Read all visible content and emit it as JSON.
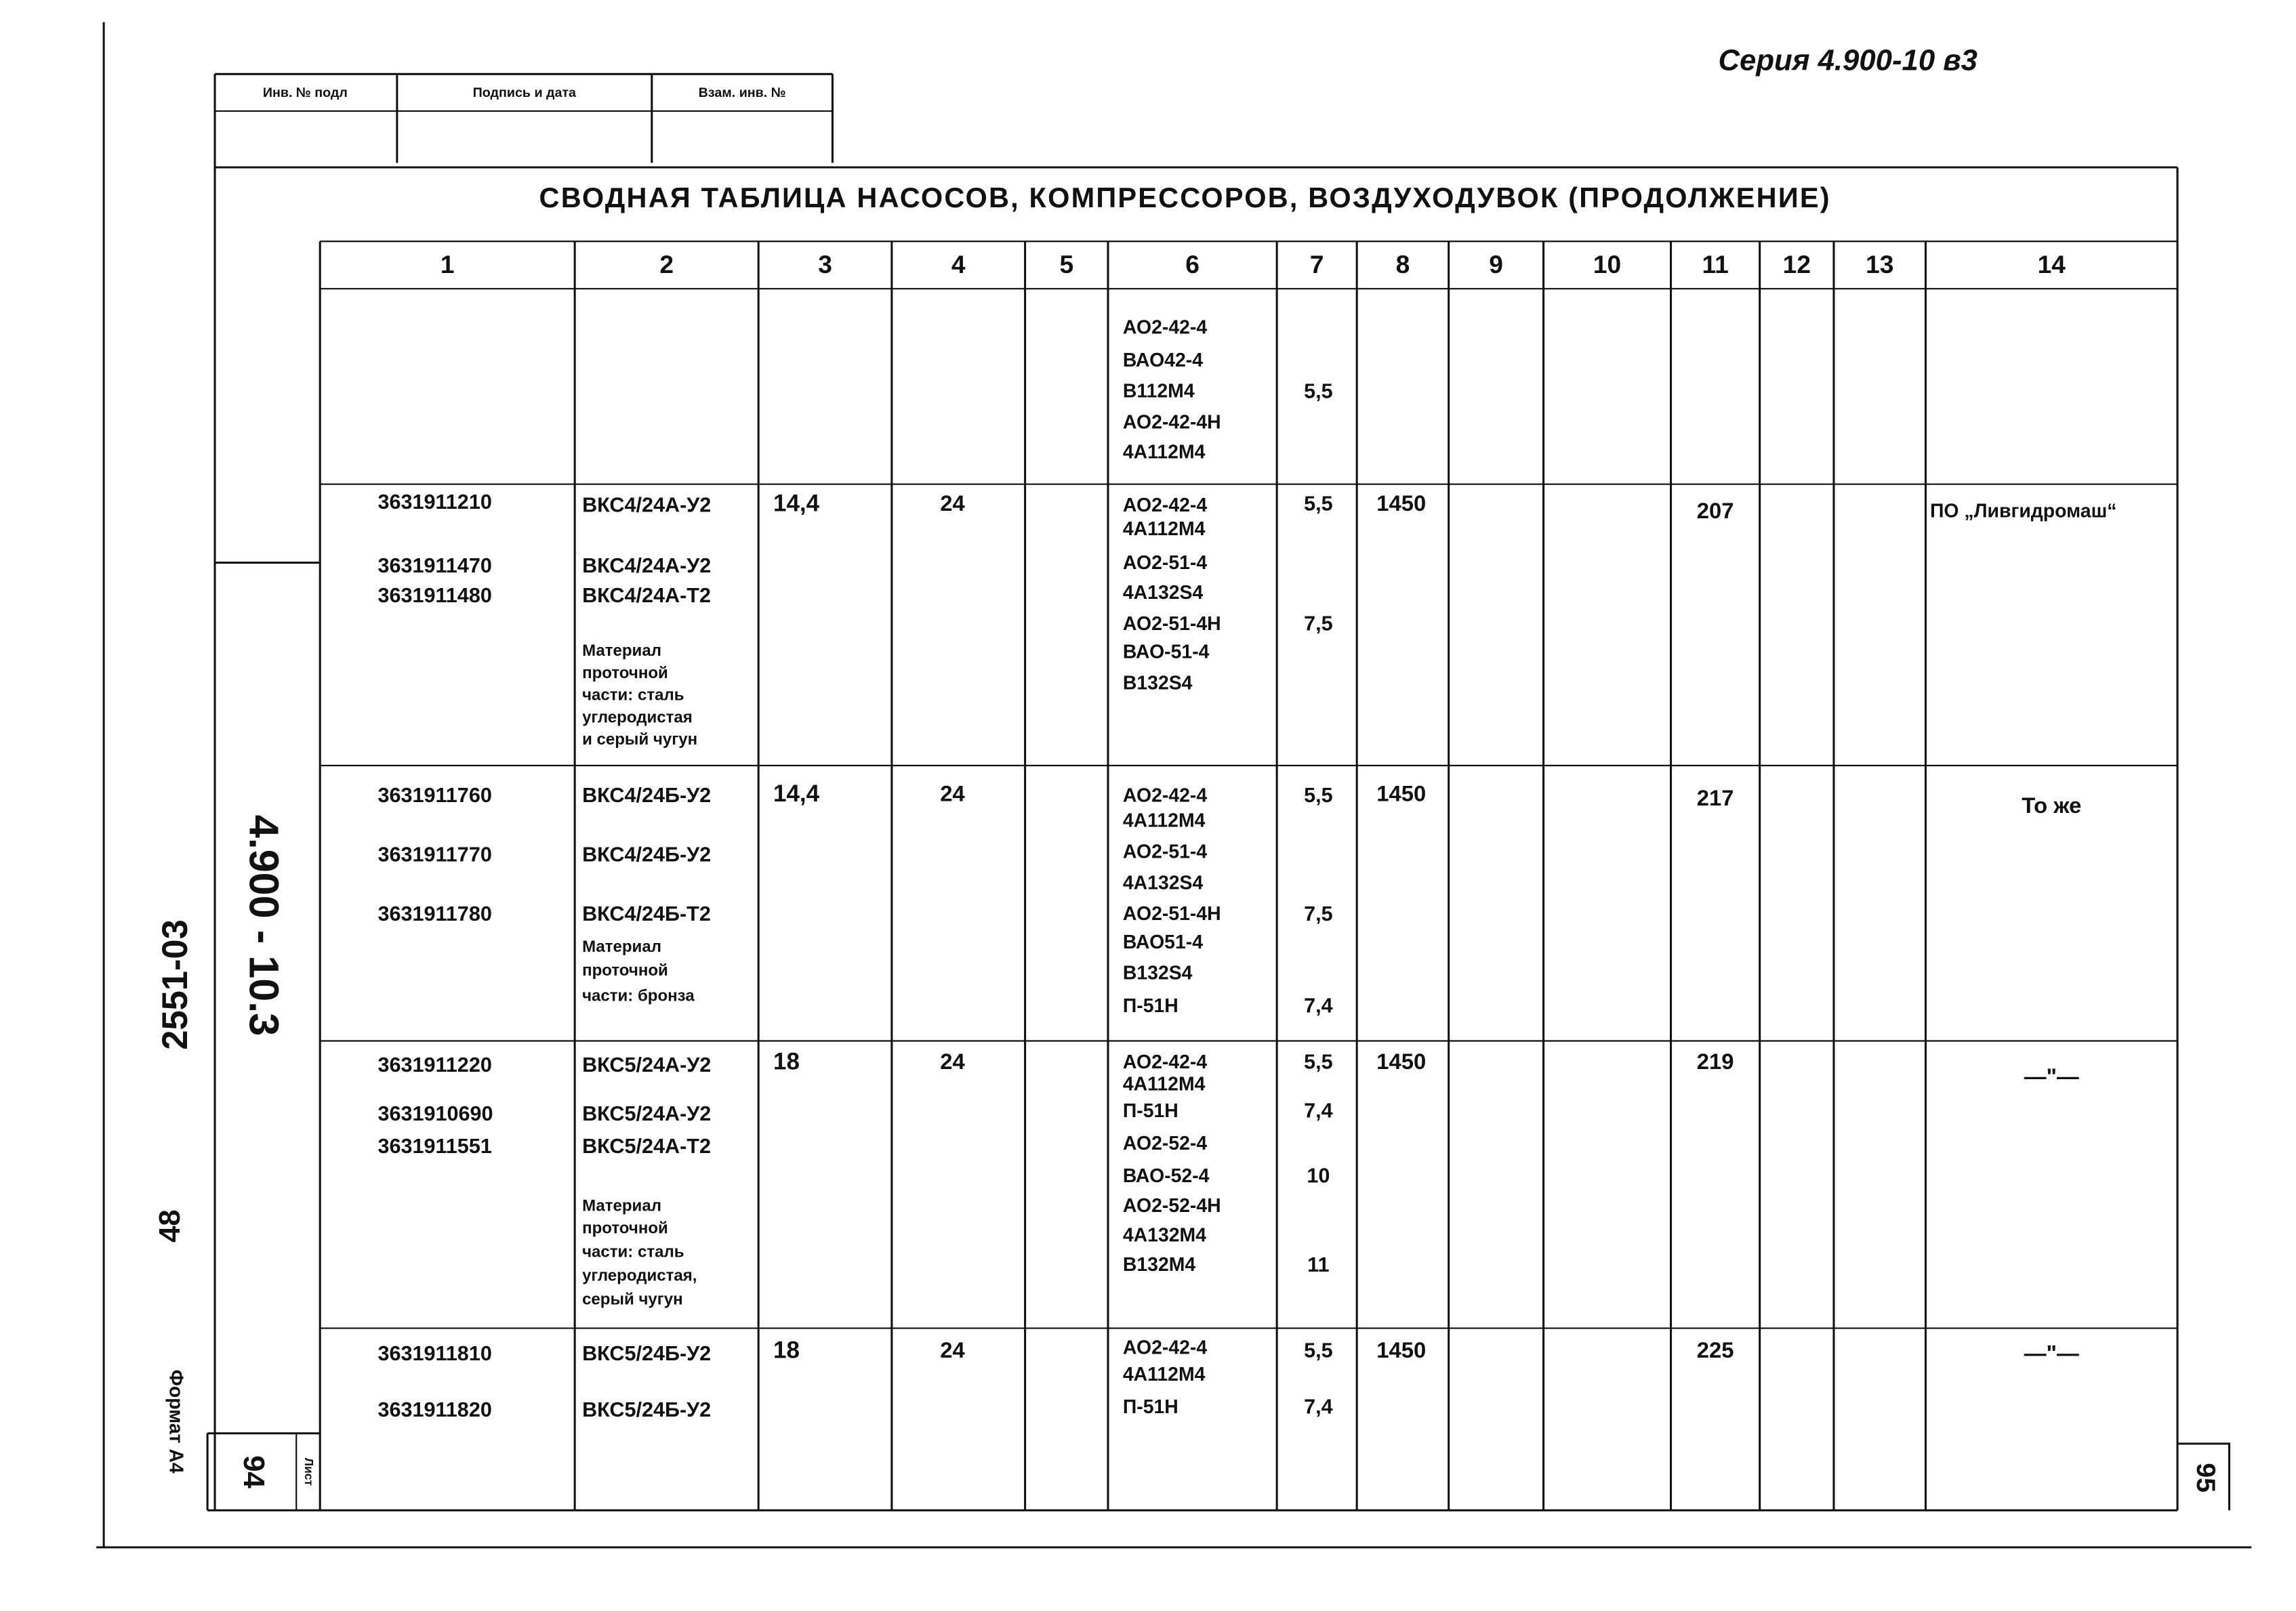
{
  "series": "Серия 4.900-10 в3",
  "stamp": {
    "labels": [
      "Инв. № подл",
      "Подпись и дата",
      "Взам. инв. №"
    ]
  },
  "title": "СВОДНАЯ ТАБЛИЦА НАСОСОВ, КОМПРЕССОРОВ, ВОЗДУХОДУВОК (ПРОДОЛЖЕНИЕ)",
  "side": {
    "doc_code": "4.900 - 10.3",
    "album": "2551-03",
    "number": "48",
    "format": "Формат А4",
    "sheet_left": "94",
    "sheet_label": "Лист",
    "sheet_right": "95"
  },
  "table": {
    "header": [
      "1",
      "2",
      "3",
      "4",
      "5",
      "6",
      "7",
      "8",
      "9",
      "10",
      "11",
      "12",
      "13",
      "14"
    ],
    "rows": [
      {
        "cells": {
          "6": [
            "АО2-42-4",
            "ВАО42-4",
            "В112М4",
            "АО2-42-4Н",
            "4А112М4"
          ],
          "7": [
            "5,5"
          ]
        }
      },
      {
        "cells": {
          "1": [
            "3631911210",
            "3631911470",
            "3631911480"
          ],
          "2": [
            "ВКС4/24А-У2",
            "ВКС4/24А-У2",
            "ВКС4/24А-Т2",
            "Материал",
            "проточной",
            "части: сталь",
            "углеродистая",
            "и серый чугун"
          ],
          "3": [
            "14,4"
          ],
          "4": [
            "24"
          ],
          "6": [
            "АО2-42-4",
            "4А112М4",
            "АО2-51-4",
            "4А132S4",
            "АО2-51-4Н",
            "ВАО-51-4",
            "В132S4"
          ],
          "7": [
            "5,5",
            "7,5"
          ],
          "8": [
            "1450"
          ],
          "11": [
            "207"
          ],
          "14": [
            "ПО „Ливгидромаш“"
          ]
        }
      },
      {
        "cells": {
          "1": [
            "3631911760",
            "3631911770",
            "3631911780"
          ],
          "2": [
            "ВКС4/24Б-У2",
            "ВКС4/24Б-У2",
            "ВКС4/24Б-Т2",
            "Материал",
            "проточной",
            "части: бронза"
          ],
          "3": [
            "14,4"
          ],
          "4": [
            "24"
          ],
          "6": [
            "АО2-42-4",
            "4А112М4",
            "АО2-51-4",
            "4А132S4",
            "АО2-51-4Н",
            "ВАО51-4",
            "В132S4",
            "П-51Н"
          ],
          "7": [
            "5,5",
            "7,5",
            "7,4"
          ],
          "8": [
            "1450"
          ],
          "11": [
            "217"
          ],
          "14": [
            "То же"
          ]
        }
      },
      {
        "cells": {
          "1": [
            "3631911220",
            "3631910690",
            "3631911551"
          ],
          "2": [
            "ВКС5/24А-У2",
            "ВКС5/24А-У2",
            "ВКС5/24А-Т2",
            "Материал",
            "проточной",
            "части: сталь",
            "углеродистая,",
            "серый чугун"
          ],
          "3": [
            "18"
          ],
          "4": [
            "24"
          ],
          "6": [
            "АО2-42-4",
            "4А112М4",
            "П-51Н",
            "АО2-52-4",
            "ВАО-52-4",
            "АО2-52-4Н",
            "4А132М4",
            "В132М4"
          ],
          "7": [
            "5,5",
            "7,4",
            "10",
            "11"
          ],
          "8": [
            "1450"
          ],
          "11": [
            "219"
          ],
          "14": [
            "—\"—"
          ]
        }
      },
      {
        "cells": {
          "1": [
            "3631911810",
            "3631911820"
          ],
          "2": [
            "ВКС5/24Б-У2",
            "ВКС5/24Б-У2"
          ],
          "3": [
            "18"
          ],
          "4": [
            "24"
          ],
          "6": [
            "АО2-42-4",
            "4А112М4",
            "П-51Н"
          ],
          "7": [
            "5,5",
            "7,4"
          ],
          "8": [
            "1450"
          ],
          "11": [
            "225"
          ],
          "14": [
            "—\"—"
          ]
        }
      }
    ]
  }
}
